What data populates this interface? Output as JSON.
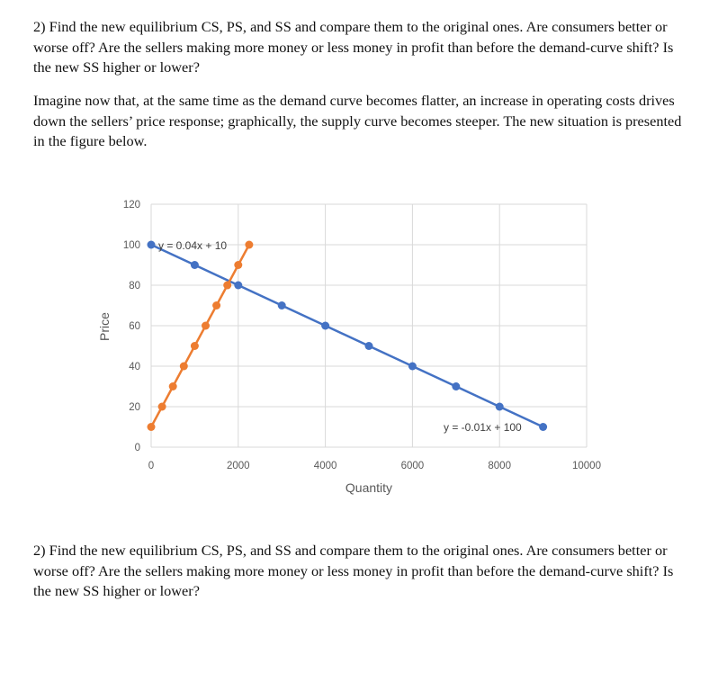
{
  "question_top": "2) Find the new equilibrium CS, PS, and SS and compare them to the original ones. Are consumers better or worse off? Are the sellers making more money or less money in profit than before the demand-curve shift? Is the new SS higher or lower?",
  "scenario": "Imagine now that, at the same time as the demand curve becomes flatter, an increase in operating costs drives down the sellers’ price response; graphically, the supply curve becomes steeper. The new situation is presented in the figure below.",
  "question_bottom": "2) Find the new equilibrium CS, PS, and SS and compare them to the original ones. Are consumers better or worse off? Are the sellers making more money or less money in profit than before the demand-curve shift? Is the new SS higher or lower?",
  "chart_data": {
    "type": "scatter",
    "title": "",
    "xlabel": "Quantity",
    "ylabel": "Price",
    "xlim": [
      0,
      10000
    ],
    "ylim": [
      0,
      120
    ],
    "xticks": [
      "0",
      "2000",
      "4000",
      "6000",
      "8000",
      "10000"
    ],
    "yticks": [
      "0",
      "20",
      "40",
      "60",
      "80",
      "100",
      "120"
    ],
    "grid": true,
    "series": [
      {
        "color": "#4472C4",
        "trendline_label": "y = -0.01x + 100",
        "x": [
          0,
          1000,
          2000,
          3000,
          4000,
          5000,
          6000,
          7000,
          8000,
          9000
        ],
        "y": [
          100,
          90,
          80,
          70,
          60,
          50,
          40,
          30,
          20,
          10
        ]
      },
      {
        "color": "#ED7D31",
        "trendline_label": "y = 0.04x + 10",
        "x": [
          0,
          250,
          500,
          750,
          1000,
          1250,
          1500,
          1750,
          2000,
          2250
        ],
        "y": [
          10,
          20,
          30,
          40,
          50,
          60,
          70,
          80,
          90,
          100
        ]
      }
    ]
  }
}
